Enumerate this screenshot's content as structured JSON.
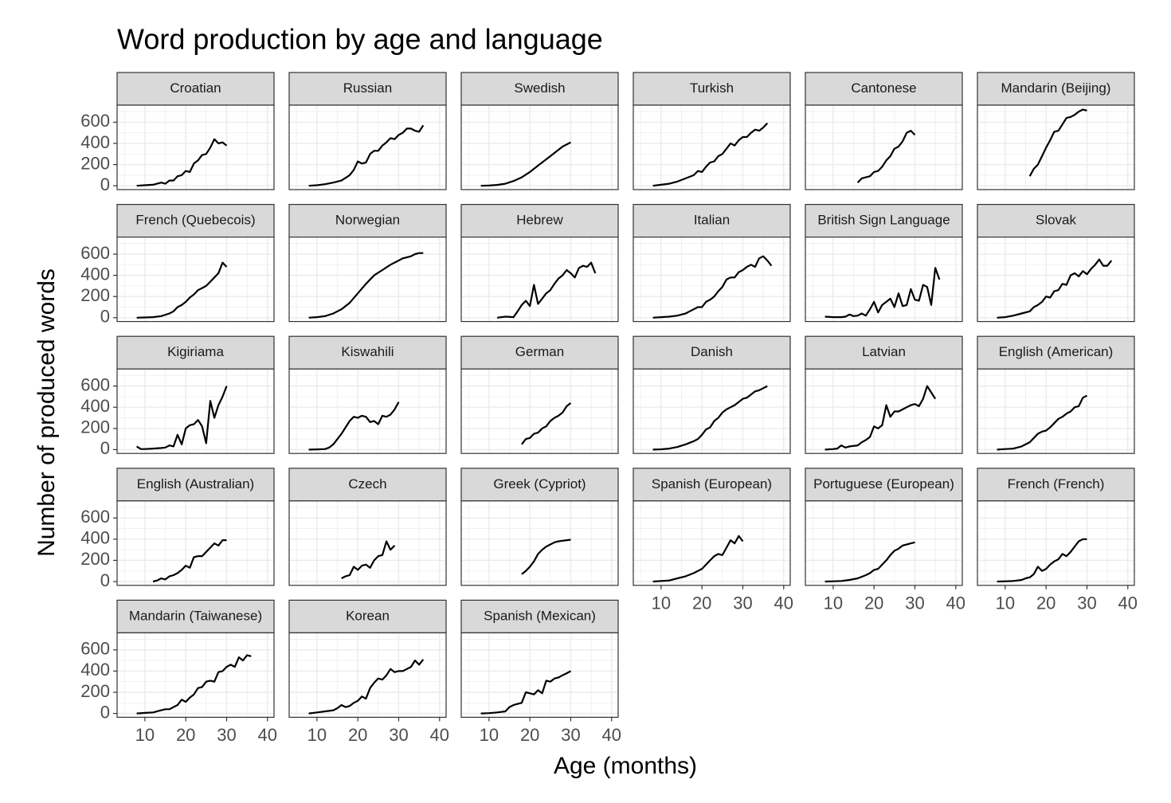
{
  "chart_data": {
    "type": "line",
    "title": "Word production by age and language",
    "x_label": "Age (months)",
    "y_label": "Number of produced words",
    "xlim": [
      3.2,
      41.6
    ],
    "ylim": [
      -36,
      761
    ],
    "xticks": [
      10,
      20,
      30,
      40
    ],
    "yticks": [
      0,
      200,
      400,
      600
    ],
    "x_minor_ticks": [
      5,
      15,
      25,
      35
    ],
    "y_minor_ticks": [
      100,
      300,
      500,
      700
    ],
    "grid": true,
    "color": "#000000",
    "series": [
      {
        "name": "Croatian",
        "x": [
          8,
          10,
          12,
          14,
          15,
          16,
          17,
          18,
          19,
          20,
          21,
          22,
          23,
          24,
          25,
          26,
          27,
          28,
          29,
          30
        ],
        "values": [
          0,
          5,
          10,
          30,
          20,
          50,
          50,
          90,
          100,
          140,
          130,
          210,
          240,
          290,
          300,
          360,
          440,
          400,
          410,
          380
        ]
      },
      {
        "name": "Russian",
        "x": [
          8,
          10,
          12,
          14,
          16,
          18,
          19,
          20,
          21,
          22,
          23,
          24,
          25,
          26,
          27,
          28,
          29,
          30,
          31,
          32,
          33,
          34,
          35,
          36
        ],
        "values": [
          0,
          5,
          15,
          30,
          50,
          100,
          150,
          230,
          210,
          220,
          300,
          330,
          330,
          380,
          410,
          450,
          440,
          480,
          500,
          540,
          540,
          520,
          510,
          570
        ]
      },
      {
        "name": "Swedish",
        "x": [
          8,
          10,
          12,
          14,
          16,
          18,
          20,
          22,
          24,
          26,
          28,
          30
        ],
        "values": [
          0,
          2,
          8,
          20,
          45,
          80,
          130,
          190,
          250,
          310,
          370,
          410
        ]
      },
      {
        "name": "Turkish",
        "x": [
          8,
          10,
          12,
          14,
          16,
          18,
          19,
          20,
          21,
          22,
          23,
          24,
          25,
          26,
          27,
          28,
          29,
          30,
          31,
          32,
          33,
          34,
          35,
          36
        ],
        "values": [
          0,
          10,
          20,
          40,
          70,
          100,
          140,
          130,
          180,
          220,
          230,
          280,
          300,
          350,
          400,
          380,
          430,
          460,
          460,
          500,
          530,
          520,
          550,
          590
        ]
      },
      {
        "name": "Cantonese",
        "x": [
          16,
          17,
          18,
          19,
          20,
          21,
          22,
          23,
          24,
          25,
          26,
          27,
          28,
          29,
          30
        ],
        "values": [
          30,
          70,
          80,
          90,
          130,
          140,
          180,
          240,
          280,
          350,
          370,
          420,
          500,
          520,
          480
        ]
      },
      {
        "name": "Mandarin (Beijing)",
        "x": [
          16,
          17,
          18,
          19,
          20,
          21,
          22,
          23,
          24,
          25,
          26,
          27,
          28,
          29,
          30
        ],
        "values": [
          90,
          160,
          200,
          280,
          360,
          430,
          510,
          520,
          580,
          640,
          650,
          670,
          700,
          720,
          710
        ]
      },
      {
        "name": "French (Quebecois)",
        "x": [
          8,
          10,
          12,
          14,
          16,
          17,
          18,
          19,
          20,
          21,
          22,
          23,
          24,
          25,
          26,
          27,
          28,
          29,
          30
        ],
        "values": [
          0,
          2,
          5,
          15,
          40,
          60,
          100,
          120,
          150,
          190,
          220,
          260,
          280,
          300,
          340,
          380,
          420,
          520,
          480
        ]
      },
      {
        "name": "Norwegian",
        "x": [
          8,
          10,
          12,
          14,
          16,
          18,
          20,
          22,
          24,
          26,
          28,
          30,
          31,
          32,
          33,
          34,
          35,
          36
        ],
        "values": [
          0,
          5,
          15,
          40,
          80,
          140,
          230,
          320,
          400,
          450,
          500,
          540,
          560,
          570,
          580,
          600,
          610,
          610
        ]
      },
      {
        "name": "Hebrew",
        "x": [
          12,
          14,
          16,
          17,
          18,
          19,
          20,
          21,
          22,
          23,
          24,
          25,
          26,
          27,
          28,
          29,
          30,
          31,
          32,
          33,
          34,
          35,
          36
        ],
        "values": [
          0,
          10,
          5,
          60,
          120,
          160,
          110,
          310,
          130,
          180,
          230,
          260,
          320,
          370,
          400,
          450,
          420,
          380,
          470,
          490,
          480,
          520,
          420
        ]
      },
      {
        "name": "Italian",
        "x": [
          8,
          10,
          12,
          14,
          15,
          16,
          17,
          18,
          19,
          20,
          21,
          22,
          23,
          24,
          25,
          26,
          27,
          28,
          29,
          30,
          31,
          32,
          33,
          34,
          35,
          36,
          37
        ],
        "values": [
          0,
          5,
          10,
          20,
          30,
          40,
          60,
          80,
          100,
          100,
          150,
          170,
          200,
          250,
          290,
          360,
          380,
          380,
          430,
          450,
          480,
          500,
          480,
          560,
          580,
          540,
          490
        ]
      },
      {
        "name": "British Sign Language",
        "x": [
          8,
          10,
          12,
          13,
          14,
          15,
          16,
          17,
          18,
          19,
          20,
          21,
          22,
          23,
          24,
          25,
          26,
          27,
          28,
          29,
          30,
          31,
          32,
          33,
          34,
          35,
          36
        ],
        "values": [
          10,
          5,
          5,
          10,
          30,
          15,
          20,
          40,
          20,
          80,
          150,
          50,
          120,
          150,
          180,
          100,
          230,
          110,
          120,
          270,
          170,
          160,
          310,
          290,
          120,
          470,
          360
        ]
      },
      {
        "name": "Slovak",
        "x": [
          8,
          10,
          12,
          14,
          16,
          17,
          18,
          19,
          20,
          21,
          22,
          23,
          24,
          25,
          26,
          27,
          28,
          29,
          30,
          31,
          32,
          33,
          34,
          35,
          36
        ],
        "values": [
          0,
          5,
          20,
          40,
          60,
          100,
          120,
          150,
          200,
          190,
          250,
          260,
          320,
          310,
          400,
          420,
          390,
          440,
          410,
          460,
          500,
          550,
          490,
          490,
          540
        ]
      },
      {
        "name": "Kigiriama",
        "x": [
          8,
          9,
          10,
          12,
          14,
          15,
          16,
          17,
          18,
          19,
          20,
          21,
          22,
          23,
          24,
          25,
          26,
          27,
          28,
          29,
          30
        ],
        "values": [
          30,
          5,
          5,
          10,
          15,
          20,
          40,
          30,
          140,
          50,
          200,
          230,
          240,
          280,
          220,
          60,
          460,
          300,
          420,
          500,
          600
        ]
      },
      {
        "name": "Kiswahili",
        "x": [
          8,
          10,
          12,
          13,
          14,
          16,
          18,
          19,
          20,
          21,
          22,
          23,
          24,
          25,
          26,
          27,
          28,
          29,
          30
        ],
        "values": [
          0,
          2,
          5,
          20,
          50,
          150,
          270,
          310,
          300,
          320,
          310,
          260,
          270,
          240,
          320,
          310,
          330,
          380,
          450
        ]
      },
      {
        "name": "German",
        "x": [
          18,
          19,
          20,
          21,
          22,
          23,
          24,
          25,
          26,
          27,
          28,
          29,
          30
        ],
        "values": [
          50,
          100,
          110,
          150,
          160,
          200,
          220,
          270,
          300,
          320,
          350,
          410,
          440
        ]
      },
      {
        "name": "Danish",
        "x": [
          8,
          10,
          12,
          14,
          16,
          18,
          19,
          20,
          21,
          22,
          23,
          24,
          25,
          26,
          27,
          28,
          29,
          30,
          31,
          32,
          33,
          34,
          35,
          36
        ],
        "values": [
          0,
          3,
          10,
          25,
          50,
          80,
          100,
          140,
          190,
          210,
          270,
          300,
          350,
          380,
          400,
          420,
          450,
          480,
          490,
          520,
          550,
          560,
          580,
          600
        ]
      },
      {
        "name": "Latvian",
        "x": [
          8,
          10,
          11,
          12,
          13,
          14,
          16,
          17,
          18,
          19,
          20,
          21,
          22,
          23,
          24,
          25,
          26,
          27,
          28,
          29,
          30,
          31,
          32,
          33,
          34,
          35
        ],
        "values": [
          0,
          5,
          10,
          40,
          20,
          30,
          40,
          70,
          90,
          120,
          220,
          200,
          230,
          420,
          310,
          360,
          360,
          380,
          400,
          420,
          430,
          410,
          480,
          600,
          540,
          480
        ]
      },
      {
        "name": "English (American)",
        "x": [
          8,
          10,
          12,
          14,
          16,
          17,
          18,
          19,
          20,
          21,
          22,
          23,
          24,
          25,
          26,
          27,
          28,
          29,
          30
        ],
        "values": [
          0,
          5,
          10,
          30,
          70,
          110,
          150,
          170,
          180,
          210,
          250,
          290,
          310,
          340,
          360,
          400,
          410,
          490,
          510
        ]
      },
      {
        "name": "English (Australian)",
        "x": [
          12,
          13,
          14,
          15,
          16,
          17,
          18,
          19,
          20,
          21,
          22,
          23,
          24,
          25,
          26,
          27,
          28,
          29,
          30
        ],
        "values": [
          0,
          10,
          30,
          20,
          50,
          60,
          80,
          110,
          150,
          130,
          230,
          240,
          240,
          280,
          320,
          360,
          340,
          390,
          390
        ]
      },
      {
        "name": "Czech",
        "x": [
          16,
          17,
          18,
          19,
          20,
          21,
          22,
          23,
          24,
          25,
          26,
          27,
          28,
          29
        ],
        "values": [
          30,
          50,
          60,
          140,
          110,
          150,
          160,
          130,
          200,
          240,
          250,
          380,
          300,
          340
        ]
      },
      {
        "name": "Greek (Cypriot)",
        "x": [
          18,
          19,
          20,
          21,
          22,
          23,
          24,
          25,
          26,
          27,
          28,
          29,
          30
        ],
        "values": [
          70,
          100,
          140,
          190,
          260,
          300,
          330,
          350,
          370,
          380,
          385,
          390,
          395
        ]
      },
      {
        "name": "Spanish (European)",
        "x": [
          8,
          10,
          12,
          14,
          16,
          18,
          19,
          20,
          21,
          22,
          23,
          24,
          25,
          26,
          27,
          28,
          29,
          30
        ],
        "values": [
          0,
          5,
          10,
          30,
          50,
          80,
          100,
          120,
          160,
          200,
          240,
          260,
          250,
          320,
          390,
          360,
          430,
          380
        ]
      },
      {
        "name": "Portuguese (European)",
        "x": [
          8,
          10,
          12,
          14,
          16,
          18,
          19,
          20,
          21,
          22,
          23,
          24,
          25,
          26,
          27,
          28,
          29,
          30
        ],
        "values": [
          0,
          2,
          5,
          15,
          30,
          60,
          80,
          110,
          120,
          160,
          200,
          250,
          290,
          310,
          340,
          350,
          360,
          370
        ]
      },
      {
        "name": "French (French)",
        "x": [
          8,
          10,
          12,
          14,
          15,
          16,
          17,
          18,
          19,
          20,
          21,
          22,
          23,
          24,
          25,
          26,
          27,
          28,
          29,
          30
        ],
        "values": [
          0,
          2,
          5,
          15,
          30,
          40,
          70,
          140,
          100,
          120,
          160,
          190,
          210,
          260,
          240,
          280,
          330,
          380,
          400,
          400
        ]
      },
      {
        "name": "Mandarin (Taiwanese)",
        "x": [
          8,
          10,
          12,
          14,
          15,
          16,
          17,
          18,
          19,
          20,
          21,
          22,
          23,
          24,
          25,
          26,
          27,
          28,
          29,
          30,
          31,
          32,
          33,
          34,
          35,
          36
        ],
        "values": [
          0,
          5,
          10,
          30,
          40,
          40,
          60,
          80,
          130,
          110,
          150,
          180,
          240,
          250,
          300,
          310,
          300,
          390,
          400,
          440,
          460,
          440,
          530,
          500,
          550,
          540
        ]
      },
      {
        "name": "Korean",
        "x": [
          8,
          10,
          12,
          14,
          15,
          16,
          17,
          18,
          19,
          20,
          21,
          22,
          23,
          24,
          25,
          26,
          27,
          28,
          29,
          30,
          31,
          32,
          33,
          34,
          35,
          36
        ],
        "values": [
          0,
          10,
          20,
          30,
          50,
          80,
          60,
          70,
          100,
          120,
          160,
          140,
          240,
          290,
          330,
          320,
          360,
          420,
          390,
          400,
          400,
          420,
          440,
          500,
          460,
          510
        ]
      },
      {
        "name": "Spanish (Mexican)",
        "x": [
          8,
          10,
          12,
          14,
          15,
          16,
          17,
          18,
          19,
          20,
          21,
          22,
          23,
          24,
          25,
          26,
          27,
          28,
          29,
          30
        ],
        "values": [
          0,
          3,
          10,
          20,
          60,
          80,
          90,
          100,
          200,
          190,
          180,
          220,
          190,
          310,
          300,
          330,
          340,
          360,
          380,
          400
        ]
      }
    ]
  }
}
